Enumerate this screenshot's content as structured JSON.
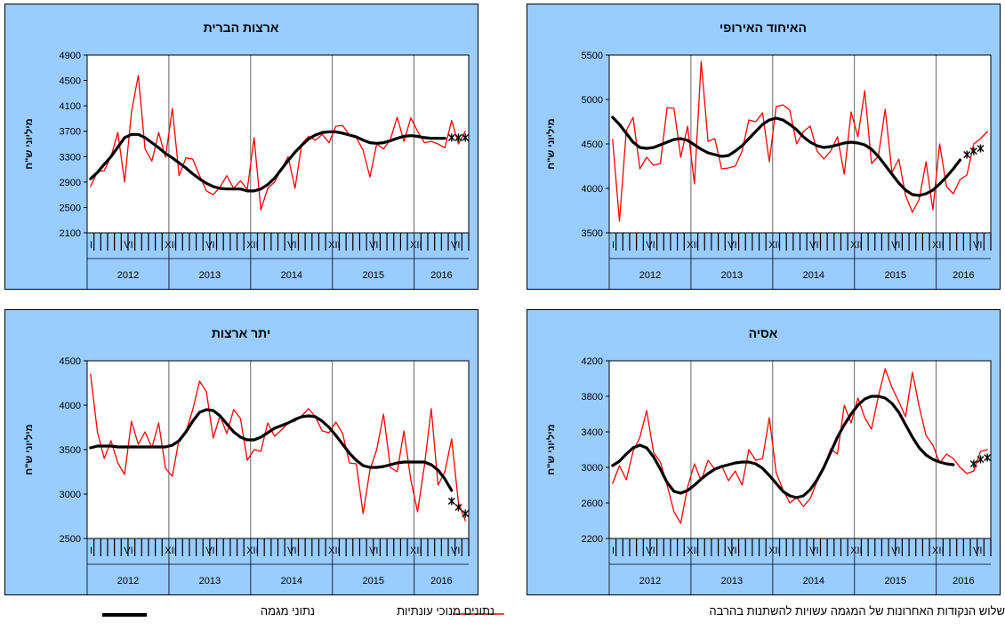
{
  "chart_data": [
    {
      "type": "line",
      "title": "ארצות הברית",
      "ylabel": "מיליוני ש\"ח",
      "ylim": [
        2100,
        4900
      ],
      "yticks": [
        2100,
        2500,
        2900,
        3300,
        3700,
        4100,
        4500,
        4900
      ],
      "years": [
        "2012",
        "2013",
        "2014",
        "2015",
        "2016"
      ],
      "roman": {
        "0": "I",
        "5": "VI",
        "11": "XII",
        "17": "VI",
        "23": "XII",
        "29": "VI",
        "35": "XII",
        "41": "VI",
        "47": "XII",
        "53": "VI"
      },
      "months": 56,
      "series": [
        {
          "role": "raw",
          "values": [
            2830,
            3060,
            3080,
            3300,
            3680,
            2900,
            4000,
            4580,
            3420,
            3230,
            3680,
            3290,
            4060,
            3000,
            3280,
            3260,
            3000,
            2760,
            2700,
            2820,
            3000,
            2800,
            2920,
            2780,
            3600,
            2460,
            2800,
            2900,
            3100,
            3300,
            2800,
            3500,
            3620,
            3560,
            3650,
            3520,
            3780,
            3790,
            3640,
            3600,
            3400,
            2980,
            3500,
            3420,
            3570,
            3920,
            3540,
            3910,
            3700,
            3520,
            3540,
            3500,
            3440,
            3870,
            3500,
            3700
          ]
        },
        {
          "role": "trend",
          "values": [
            2950,
            3050,
            3180,
            3300,
            3450,
            3600,
            3650,
            3650,
            3600,
            3520,
            3440,
            3350,
            3280,
            3200,
            3120,
            3030,
            2950,
            2880,
            2830,
            2800,
            2790,
            2790,
            2790,
            2760,
            2760,
            2790,
            2860,
            2960,
            3100,
            3240,
            3370,
            3480,
            3580,
            3640,
            3680,
            3690,
            3690,
            3670,
            3640,
            3610,
            3560,
            3520,
            3510,
            3520,
            3550,
            3590,
            3620,
            3630,
            3620,
            3600,
            3590,
            3590,
            3590
          ]
        },
        {
          "role": "uncertain",
          "values": [
            3600,
            3600,
            3600
          ],
          "start": 53
        }
      ]
    },
    {
      "type": "line",
      "title": "האיחוד האירופי",
      "ylabel": "מיליוני ש\"ח",
      "ylim": [
        3500,
        5500
      ],
      "yticks": [
        3500,
        4000,
        4500,
        5000,
        5500
      ],
      "years": [
        "2012",
        "2013",
        "2014",
        "2015",
        "2016"
      ],
      "roman": {
        "0": "I",
        "5": "VI",
        "11": "XII",
        "17": "VI",
        "23": "XII",
        "29": "VI",
        "35": "XII",
        "41": "VI",
        "47": "XII",
        "53": "VI"
      },
      "months": 56,
      "series": [
        {
          "role": "raw",
          "values": [
            4550,
            3630,
            4650,
            4800,
            4220,
            4350,
            4260,
            4280,
            4910,
            4900,
            4350,
            4700,
            4050,
            5430,
            4530,
            4560,
            4220,
            4230,
            4250,
            4420,
            4770,
            4750,
            4850,
            4300,
            4920,
            4940,
            4880,
            4500,
            4640,
            4700,
            4420,
            4330,
            4420,
            4580,
            4160,
            4860,
            4580,
            5100,
            4280,
            4360,
            4890,
            4180,
            4330,
            3920,
            3730,
            3880,
            4300,
            3760,
            4500,
            4020,
            3940,
            4100,
            4150,
            4500,
            4560,
            4640
          ]
        },
        {
          "role": "trend",
          "values": [
            4800,
            4720,
            4620,
            4520,
            4460,
            4450,
            4460,
            4490,
            4520,
            4550,
            4560,
            4540,
            4490,
            4440,
            4400,
            4380,
            4360,
            4370,
            4420,
            4480,
            4560,
            4640,
            4720,
            4770,
            4790,
            4770,
            4720,
            4660,
            4580,
            4520,
            4480,
            4460,
            4470,
            4490,
            4510,
            4520,
            4510,
            4490,
            4440,
            4360,
            4260,
            4160,
            4060,
            3980,
            3930,
            3920,
            3940,
            3980,
            4050,
            4130,
            4220,
            4320
          ]
        },
        {
          "role": "uncertain",
          "values": [
            4380,
            4420,
            4450
          ],
          "start": 52
        }
      ]
    },
    {
      "type": "line",
      "title": "יתר ארצות",
      "ylabel": "מיליוני ש\"ח",
      "ylim": [
        2500,
        4500
      ],
      "yticks": [
        2500,
        3000,
        3500,
        4000,
        4500
      ],
      "years": [
        "2012",
        "2013",
        "2014",
        "2015",
        "2016"
      ],
      "roman": {
        "0": "I",
        "5": "VI",
        "11": "XII",
        "17": "VI",
        "23": "XII",
        "29": "VI",
        "35": "XII",
        "41": "VI",
        "47": "XII",
        "53": "VI"
      },
      "months": 56,
      "series": [
        {
          "role": "raw",
          "values": [
            4350,
            3700,
            3400,
            3600,
            3350,
            3220,
            3820,
            3560,
            3700,
            3520,
            3800,
            3290,
            3200,
            3620,
            3700,
            3950,
            4270,
            4150,
            3630,
            3880,
            3680,
            3950,
            3850,
            3380,
            3500,
            3480,
            3800,
            3650,
            3720,
            3800,
            3820,
            3880,
            3960,
            3870,
            3710,
            3690,
            3810,
            3680,
            3350,
            3340,
            2780,
            3270,
            3500,
            3900,
            3300,
            3250,
            3710,
            3160,
            2800,
            3320,
            3960,
            3100,
            3250,
            3620,
            2900,
            2700
          ]
        },
        {
          "role": "trend",
          "values": [
            3520,
            3540,
            3540,
            3540,
            3530,
            3530,
            3530,
            3530,
            3530,
            3530,
            3530,
            3530,
            3550,
            3600,
            3700,
            3820,
            3920,
            3950,
            3940,
            3880,
            3790,
            3700,
            3640,
            3610,
            3610,
            3640,
            3690,
            3740,
            3770,
            3800,
            3840,
            3870,
            3880,
            3870,
            3820,
            3750,
            3660,
            3560,
            3460,
            3380,
            3320,
            3300,
            3300,
            3310,
            3330,
            3350,
            3360,
            3360,
            3360,
            3360,
            3330,
            3270,
            3170,
            3040
          ]
        },
        {
          "role": "uncertain",
          "values": [
            2920,
            2850,
            2780
          ],
          "start": 53
        }
      ]
    },
    {
      "type": "line",
      "title": "אסיה",
      "ylabel": "מיליוני ש\"ח",
      "ylim": [
        2200,
        4200
      ],
      "yticks": [
        2200,
        2600,
        3000,
        3400,
        3800,
        4200
      ],
      "years": [
        "2012",
        "2013",
        "2014",
        "2015",
        "2016"
      ],
      "roman": {
        "0": "I",
        "5": "VI",
        "11": "XII",
        "17": "VI",
        "23": "XII",
        "29": "VI",
        "35": "XII",
        "41": "VI",
        "47": "XII",
        "53": "VI"
      },
      "months": 56,
      "series": [
        {
          "role": "raw",
          "values": [
            2820,
            3020,
            2860,
            3180,
            3340,
            3640,
            3170,
            3060,
            2800,
            2500,
            2370,
            2780,
            3040,
            2850,
            3080,
            2980,
            3020,
            2850,
            2960,
            2800,
            3200,
            3080,
            3100,
            3560,
            2940,
            2750,
            2600,
            2660,
            2560,
            2650,
            2840,
            2980,
            3210,
            3150,
            3700,
            3500,
            3780,
            3560,
            3430,
            3800,
            4110,
            3900,
            3740,
            3570,
            4070,
            3680,
            3360,
            3250,
            3050,
            3150,
            3100,
            3000,
            2930,
            2960,
            3180,
            3200
          ]
        },
        {
          "role": "trend",
          "values": [
            3020,
            3070,
            3150,
            3220,
            3250,
            3220,
            3120,
            2980,
            2830,
            2730,
            2710,
            2740,
            2800,
            2870,
            2930,
            2980,
            3010,
            3030,
            3050,
            3060,
            3060,
            3040,
            2990,
            2910,
            2820,
            2730,
            2680,
            2660,
            2680,
            2750,
            2860,
            3000,
            3170,
            3340,
            3480,
            3600,
            3700,
            3770,
            3800,
            3800,
            3780,
            3720,
            3620,
            3480,
            3340,
            3220,
            3140,
            3090,
            3060,
            3040,
            3030
          ]
        },
        {
          "role": "uncertain",
          "values": [
            3040,
            3090,
            3110
          ],
          "start": 53
        }
      ]
    }
  ],
  "legend": {
    "uncertain_label": "שלוש הנקודות האחרונות של המגמה עשויות להשתנות בהרבה",
    "raw_label": "נתונים מנוכי עונתיות",
    "trend_label": "נתוני מגמה"
  },
  "colors": {
    "raw": "#ff0000",
    "trend": "#000000",
    "panel": "#99ccff"
  }
}
